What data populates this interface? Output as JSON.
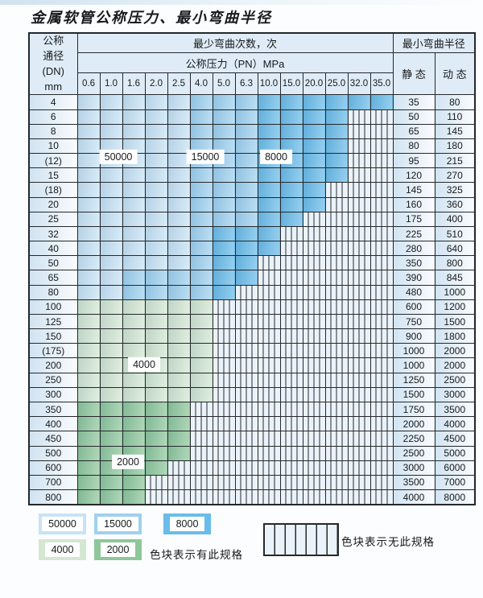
{
  "title": "金属软管公称压力、最小弯曲半径",
  "table": {
    "dn_header_lines": [
      "公称",
      "通径",
      "(DN)",
      "mm"
    ],
    "cycles_header": "最少弯曲次数，次",
    "pressure_header": "公称压力（PN）MPa",
    "pressure_columns": [
      "0.6",
      "1.0",
      "1.6",
      "2.0",
      "2.5",
      "4.0",
      "5.0",
      "6.3",
      "10.0",
      "15.0",
      "20.0",
      "25.0",
      "32.0",
      "35.0"
    ],
    "radius_header": "最小弯曲半径",
    "static_header": "静 态",
    "dynamic_header": "动 态",
    "overlays": [
      {
        "label": "50000"
      },
      {
        "label": "15000"
      },
      {
        "label": "8000"
      },
      {
        "label": "4000"
      },
      {
        "label": "2000"
      }
    ]
  },
  "legend": {
    "swatches": [
      {
        "label": "50000",
        "shade": "A"
      },
      {
        "label": "15000",
        "shade": "B"
      },
      {
        "label": "8000",
        "shade": "C"
      },
      {
        "label": "4000",
        "shade": "D"
      },
      {
        "label": "2000",
        "shade": "E"
      }
    ],
    "available_note": "色块表示有此规格",
    "unavailable_note": "色块表示无此规格"
  },
  "colors": {
    "band_50000": "#c8e3f5",
    "band_15000": "#9fd1ef",
    "band_8000": "#6abce9",
    "band_4000": "#d3e7d1",
    "band_2000": "#8ec79a",
    "no_spec_bg": "#ebf3fa",
    "grid_line": "#25282c",
    "header_bg": "#dfecf7",
    "label_cell_bg": "#eef5fb"
  },
  "chart_data": {
    "type": "table",
    "title": "金属软管公称压力、最小弯曲半径",
    "pressure_columns_MPa": [
      0.6,
      1.0,
      1.6,
      2.0,
      2.5,
      4.0,
      5.0,
      6.3,
      10.0,
      15.0,
      20.0,
      25.0,
      32.0,
      35.0
    ],
    "bend_cycles_legend": {
      "A": 50000,
      "B": 15000,
      "C": 8000,
      "D": 4000,
      "E": 2000,
      "X": "no specification"
    },
    "columns_meaning": "bands string = shade code per pressure column (A/B/C blue bend-cycle bands, D/E green bands, X hatched = not available); static/dynamic = minimum bend radius",
    "rows": [
      {
        "dn": "4",
        "bands": "AAAAABBBCCCCCC",
        "static": 35,
        "dynamic": 80
      },
      {
        "dn": "6",
        "bands": "AAAAABBBCCCCXX",
        "static": 50,
        "dynamic": 110
      },
      {
        "dn": "8",
        "bands": "AAAAABBBCCCCXX",
        "static": 65,
        "dynamic": 145
      },
      {
        "dn": "10",
        "bands": "AAAAABBBCCCCXX",
        "static": 80,
        "dynamic": 180
      },
      {
        "dn": "(12)",
        "bands": "AAAAABBBCCCCXX",
        "static": 95,
        "dynamic": 215
      },
      {
        "dn": "15",
        "bands": "AAAAABBBCCCCXX",
        "static": 120,
        "dynamic": 270
      },
      {
        "dn": "(18)",
        "bands": "AAAAABBBCCCXXX",
        "static": 145,
        "dynamic": 325
      },
      {
        "dn": "20",
        "bands": "AAAAABBBCCCXXX",
        "static": 160,
        "dynamic": 360
      },
      {
        "dn": "25",
        "bands": "AAAAABBBCCXXXX",
        "static": 175,
        "dynamic": 400
      },
      {
        "dn": "32",
        "bands": "AAAAABCCCXXXXX",
        "static": 225,
        "dynamic": 510
      },
      {
        "dn": "40",
        "bands": "AAAAABCCCXXXXX",
        "static": 280,
        "dynamic": 640
      },
      {
        "dn": "50",
        "bands": "AAAAABCCXXXXXX",
        "static": 350,
        "dynamic": 800
      },
      {
        "dn": "65",
        "bands": "AABBBBCCXXXXXX",
        "static": 390,
        "dynamic": 845
      },
      {
        "dn": "80",
        "bands": "AABBBBCXXXXXXX",
        "static": 480,
        "dynamic": 1000
      },
      {
        "dn": "100",
        "bands": "DDDDDDXXXXXXXX",
        "static": 600,
        "dynamic": 1200
      },
      {
        "dn": "125",
        "bands": "DDDDDDXXXXXXXX",
        "static": 750,
        "dynamic": 1500
      },
      {
        "dn": "150",
        "bands": "DDDDDDXXXXXXXX",
        "static": 900,
        "dynamic": 1800
      },
      {
        "dn": "(175)",
        "bands": "DDDDDDXXXXXXXX",
        "static": 1000,
        "dynamic": 2000
      },
      {
        "dn": "200",
        "bands": "DDDDDDXXXXXXXX",
        "static": 1000,
        "dynamic": 2000
      },
      {
        "dn": "250",
        "bands": "DDDDDDXXXXXXXX",
        "static": 1250,
        "dynamic": 2500
      },
      {
        "dn": "300",
        "bands": "DDDDDDXXXXXXXX",
        "static": 1500,
        "dynamic": 3000
      },
      {
        "dn": "350",
        "bands": "EEEEEXXXXXXXXX",
        "static": 1750,
        "dynamic": 3500
      },
      {
        "dn": "400",
        "bands": "EEEEEXXXXXXXXX",
        "static": 2000,
        "dynamic": 4000
      },
      {
        "dn": "450",
        "bands": "EEEEEXXXXXXXXX",
        "static": 2250,
        "dynamic": 4500
      },
      {
        "dn": "500",
        "bands": "EEEEEXXXXXXXXX",
        "static": 2500,
        "dynamic": 5000
      },
      {
        "dn": "600",
        "bands": "EEEEXXXXXXXXXX",
        "static": 3000,
        "dynamic": 6000
      },
      {
        "dn": "700",
        "bands": "EEEXXXXXXXXXXX",
        "static": 3500,
        "dynamic": 7000
      },
      {
        "dn": "800",
        "bands": "EEEXXXXXXXXXXX",
        "static": 4000,
        "dynamic": 8000
      }
    ]
  }
}
